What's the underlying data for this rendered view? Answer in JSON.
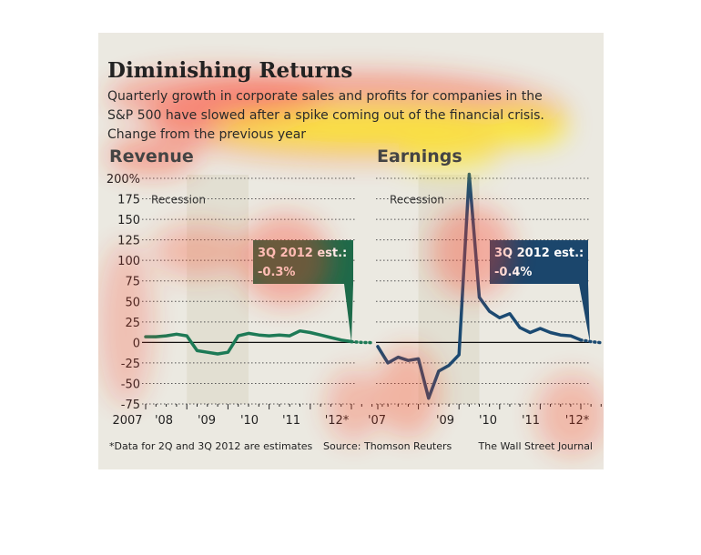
{
  "header": {
    "title": "Diminishing Returns",
    "subtitle_lines": [
      "Quarterly growth in corporate sales and profits for companies in the",
      "S&P 500 have slowed after a spike coming out of the financial crisis.",
      "Change from the previous year"
    ]
  },
  "footer": {
    "note": "*Data for 2Q and 3Q 2012 are estimates",
    "source": "Source: Thomson Reuters",
    "credit": "The Wall Street Journal"
  },
  "colors": {
    "background": "#ebe9e1",
    "recession_shade": "#e2dfd2",
    "revenue_line": "#1d7a56",
    "earnings_line": "#1b4a72",
    "revenue_callout": "#1d6b4a",
    "earnings_callout": "#1b466c",
    "text": "#222222",
    "heat_hot": "#fff200",
    "heat_warm": "#ff3b1f"
  },
  "chart_data": [
    {
      "type": "line",
      "title": "Revenue",
      "shaded_region_label": "Recession",
      "ylim": [
        -75,
        200
      ],
      "y_ticks": [
        "200%",
        "175",
        "150",
        "125",
        "100",
        "75",
        "50",
        "25",
        "0",
        "-25",
        "-50",
        "-75"
      ],
      "x_ticks": [
        "2007",
        "'08",
        "'09",
        "'10",
        "'11",
        "'12*"
      ],
      "callout": [
        "3Q 2012 est.:",
        "-0.3%"
      ],
      "series": [
        {
          "x": [
            2007.0,
            2007.25,
            2007.5,
            2007.75,
            2008.0,
            2008.25,
            2008.5,
            2008.75,
            2009.0,
            2009.25,
            2009.5,
            2009.75,
            2010.0,
            2010.25,
            2010.5,
            2010.75,
            2011.0,
            2011.25,
            2011.5,
            2011.75,
            2012.0,
            2012.25,
            2012.5
          ],
          "y": [
            7,
            7,
            8,
            10,
            8,
            -10,
            -12,
            -14,
            -12,
            8,
            11,
            9,
            8,
            9,
            8,
            14,
            12,
            9,
            6,
            3,
            1,
            0,
            -0.3
          ],
          "estimate_from_x": 2012.0
        }
      ]
    },
    {
      "type": "line",
      "title": "Earnings",
      "shaded_region_label": "Recession",
      "ylim": [
        -75,
        200
      ],
      "x_ticks": [
        "'07",
        "'09",
        "'10",
        "'11",
        "'12*"
      ],
      "callout": [
        "3Q 2012 est.:",
        "-0.4%"
      ],
      "series": [
        {
          "x": [
            2007.0,
            2007.25,
            2007.5,
            2007.75,
            2008.0,
            2008.25,
            2008.5,
            2008.75,
            2009.0,
            2009.25,
            2009.5,
            2009.75,
            2010.0,
            2010.25,
            2010.5,
            2010.75,
            2011.0,
            2011.25,
            2011.5,
            2011.75,
            2012.0,
            2012.25,
            2012.5
          ],
          "y": [
            -5,
            -25,
            -18,
            -22,
            -20,
            -68,
            -35,
            -28,
            -15,
            205,
            55,
            38,
            30,
            35,
            18,
            12,
            17,
            12,
            9,
            8,
            3,
            1,
            -0.4
          ],
          "estimate_from_x": 2012.0
        }
      ]
    }
  ]
}
